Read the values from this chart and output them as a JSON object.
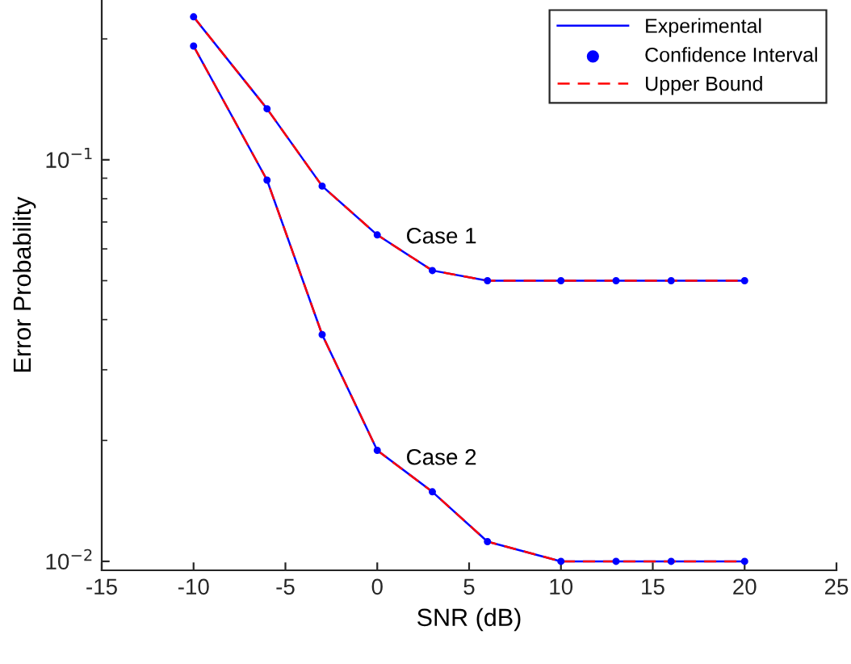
{
  "chart_data": {
    "type": "line",
    "xlabel": "SNR (dB)",
    "ylabel": "Error Probability",
    "x": [
      -10,
      -6,
      -3,
      0,
      3,
      6,
      10,
      13,
      16,
      20
    ],
    "series": [
      {
        "name": "Experimental",
        "color": "#0000ff",
        "line_style": "solid",
        "marker": "none",
        "values": [
          0.227,
          0.134,
          0.086,
          0.065,
          0.053,
          0.05,
          0.05,
          0.05,
          0.05,
          0.05
        ]
      },
      {
        "name": "Confidence Interval",
        "type": "scatter",
        "color": "#0000ff",
        "marker": "circle",
        "values": [
          0.227,
          0.134,
          0.086,
          0.065,
          0.053,
          0.05,
          0.05,
          0.05,
          0.05,
          0.05
        ]
      },
      {
        "name": "Upper Bound",
        "color": "#ff0000",
        "line_style": "dashed",
        "marker": "none",
        "values": [
          0.227,
          0.134,
          0.086,
          0.065,
          0.053,
          0.05,
          0.05,
          0.05,
          0.05,
          0.05
        ]
      },
      {
        "color": "#0000ff",
        "line_style": "solid",
        "marker": "none",
        "values": [
          0.192,
          0.089,
          0.0367,
          0.0189,
          0.0149,
          0.0112,
          0.01,
          0.01,
          0.01,
          0.01
        ]
      },
      {
        "type": "scatter",
        "color": "#0000ff",
        "marker": "circle",
        "values": [
          0.192,
          0.089,
          0.0367,
          0.0189,
          0.0149,
          0.0112,
          0.01,
          0.01,
          0.01,
          0.01
        ]
      },
      {
        "color": "#ff0000",
        "line_style": "dashed",
        "marker": "none",
        "values": [
          0.192,
          0.089,
          0.0367,
          0.0189,
          0.0149,
          0.0112,
          0.01,
          0.01,
          0.01,
          0.01
        ]
      }
    ],
    "annotations": [
      "Case 1",
      "Case 2"
    ],
    "log": "y",
    "xlim": [
      -15,
      25
    ],
    "xticks": [
      -15,
      -10,
      -5,
      0,
      5,
      10,
      15,
      20,
      25
    ],
    "ylim": [
      0.0095,
      0.25
    ],
    "yticks": [
      {
        "value": 0.01,
        "label": "10$^{−2}$"
      },
      {
        "value": 0.1,
        "label": "10$^{−1}$"
      }
    ],
    "grid": false,
    "legend": "top right"
  }
}
